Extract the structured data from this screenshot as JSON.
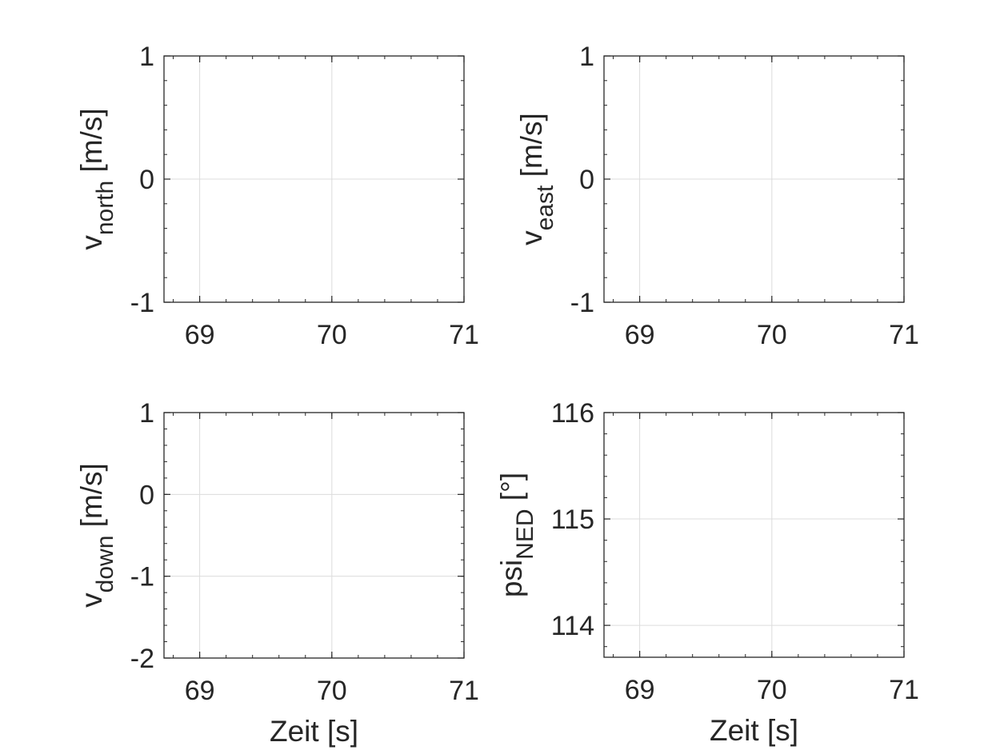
{
  "chart_data": [
    {
      "type": "line",
      "position": "top-left",
      "title": "",
      "xlabel": "",
      "ylabel_main": "v",
      "ylabel_sub": "north",
      "ylabel_unit": " [m/s]",
      "xlim": [
        68.73,
        71
      ],
      "ylim": [
        -1,
        1
      ],
      "xticks": [
        69,
        70,
        71
      ],
      "yticks": [
        -1,
        0,
        1
      ],
      "grid": true,
      "series": []
    },
    {
      "type": "line",
      "position": "top-right",
      "title": "",
      "xlabel": "",
      "ylabel_main": "v",
      "ylabel_sub": "east",
      "ylabel_unit": " [m/s]",
      "xlim": [
        68.73,
        71
      ],
      "ylim": [
        -1,
        1
      ],
      "xticks": [
        69,
        70,
        71
      ],
      "yticks": [
        -1,
        0,
        1
      ],
      "grid": true,
      "series": []
    },
    {
      "type": "line",
      "position": "bottom-left",
      "title": "",
      "xlabel": "Zeit [s]",
      "ylabel_main": "v",
      "ylabel_sub": "down",
      "ylabel_unit": " [m/s]",
      "xlim": [
        68.73,
        71
      ],
      "ylim": [
        -2,
        1
      ],
      "xticks": [
        69,
        70,
        71
      ],
      "yticks": [
        -2,
        -1,
        0,
        1
      ],
      "grid": true,
      "series": []
    },
    {
      "type": "line",
      "position": "bottom-right",
      "title": "",
      "xlabel": "Zeit [s]",
      "ylabel_main": "psi",
      "ylabel_sub": "NED",
      "ylabel_unit": " [°]",
      "xlim": [
        68.73,
        71
      ],
      "ylim": [
        113.7,
        116
      ],
      "xticks": [
        69,
        70,
        71
      ],
      "yticks": [
        114,
        115,
        116
      ],
      "grid": true,
      "series": []
    }
  ]
}
